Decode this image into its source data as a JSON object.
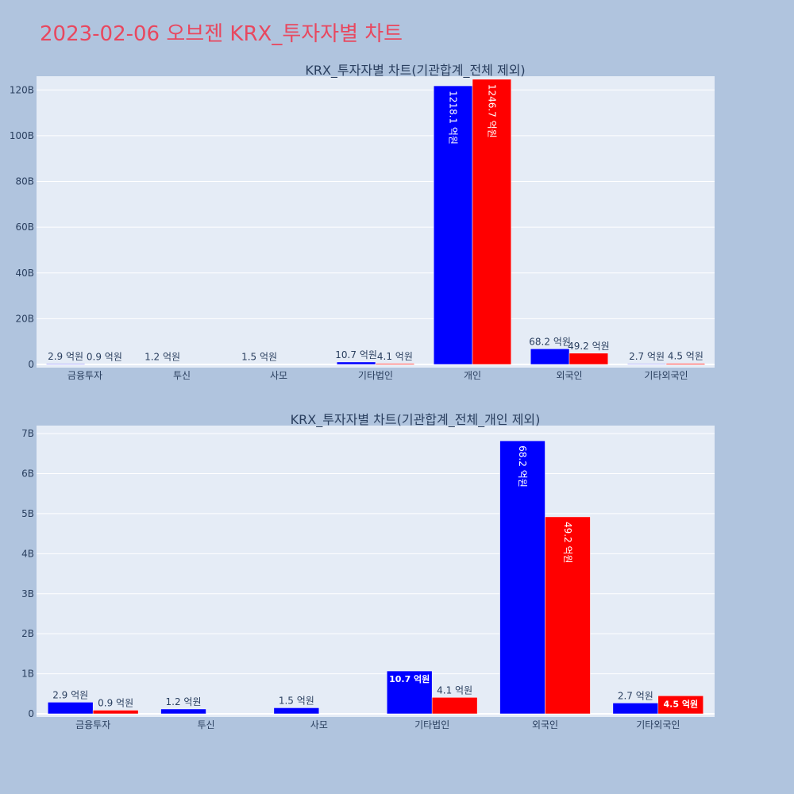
{
  "title": "2023-02-06 오브젠 KRX_투자자별 차트",
  "colors": {
    "buy": "#0000ff",
    "sell": "#ff0000",
    "plot_bg": "#e5ecf6",
    "page_bg": "#b0c4de"
  },
  "chart_data": [
    {
      "type": "bar",
      "title": "KRX_투자자별 차트(기관합계_전체 제외)",
      "categories": [
        "금융투자",
        "투신",
        "사모",
        "기타법인",
        "개인",
        "외국인",
        "기타외국인"
      ],
      "series": [
        {
          "values": [
            0.29,
            0.12,
            0.15,
            1.07,
            121.81,
            6.82,
            0.27
          ],
          "labels": [
            "2.9 억원",
            "1.2 억원",
            "1.5 억원",
            "10.7 억원",
            "1218.1 억원",
            "68.2 억원",
            "2.7 억원"
          ]
        },
        {
          "values": [
            0.09,
            0,
            0,
            0.41,
            124.67,
            4.92,
            0.45
          ],
          "labels": [
            "0.9 억원",
            "",
            "",
            "4.1 억원",
            "1246.7 억원",
            "49.2 억원",
            "4.5 억원"
          ]
        }
      ],
      "value_unit": "B",
      "ylim": [
        0,
        126
      ],
      "yticks": [
        0,
        20,
        40,
        60,
        80,
        100,
        120
      ],
      "ytick_labels": [
        "0",
        "20B",
        "40B",
        "60B",
        "80B",
        "100B",
        "120B"
      ],
      "grid": true
    },
    {
      "type": "bar",
      "title": "KRX_투자자별 차트(기관합계_전체_개인 제외)",
      "categories": [
        "금융투자",
        "투신",
        "사모",
        "기타법인",
        "외국인",
        "기타외국인"
      ],
      "series": [
        {
          "values": [
            0.29,
            0.12,
            0.15,
            1.07,
            6.82,
            0.27
          ],
          "labels": [
            "2.9 억원",
            "1.2 억원",
            "1.5 억원",
            "10.7 억원",
            "68.2 억원",
            "2.7 억원"
          ]
        },
        {
          "values": [
            0.09,
            0,
            0,
            0.41,
            4.92,
            0.45
          ],
          "labels": [
            "0.9 억원",
            "",
            "",
            "4.1 억원",
            "49.2 억원",
            "4.5 억원"
          ]
        }
      ],
      "value_unit": "B",
      "ylim": [
        0,
        7.2
      ],
      "yticks": [
        0,
        1,
        2,
        3,
        4,
        5,
        6,
        7
      ],
      "ytick_labels": [
        "0",
        "1B",
        "2B",
        "3B",
        "4B",
        "5B",
        "6B",
        "7B"
      ],
      "grid": true
    }
  ]
}
